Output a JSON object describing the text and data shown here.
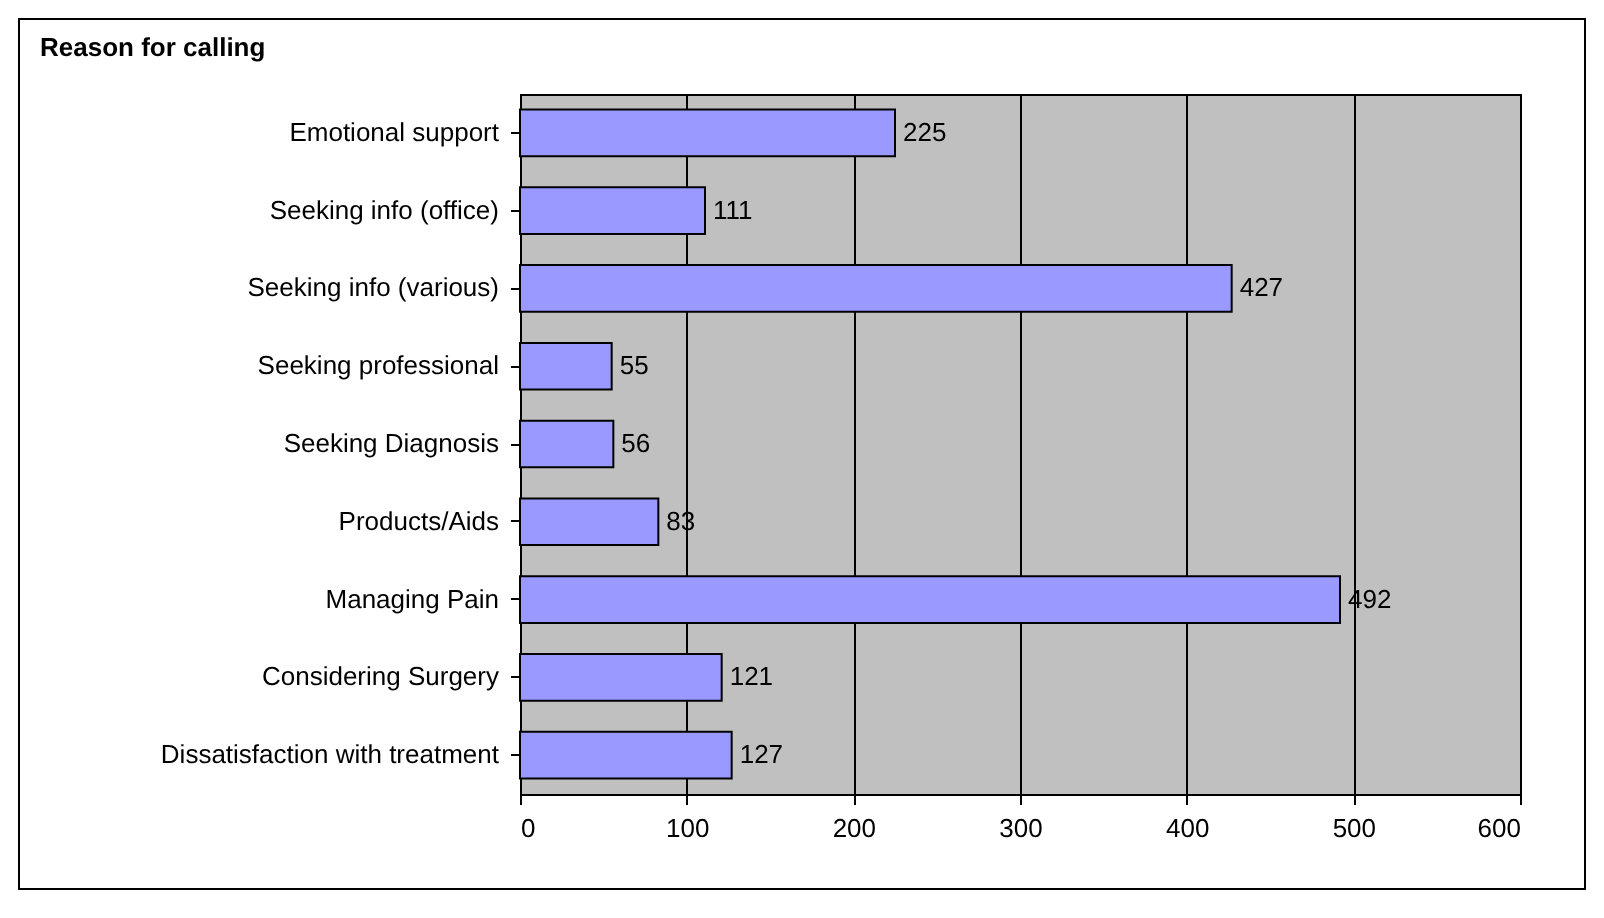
{
  "chart_data": {
    "type": "bar",
    "orientation": "horizontal",
    "title": "Reason for calling",
    "categories": [
      "Emotional support",
      "Seeking info (office)",
      "Seeking info (various)",
      "Seeking professional",
      "Seeking Diagnosis",
      "Products/Aids",
      "Managing Pain",
      "Considering Surgery",
      "Dissatisfaction with treatment"
    ],
    "values": [
      225,
      111,
      427,
      55,
      56,
      83,
      492,
      121,
      127
    ],
    "color": "#9999ff",
    "xlim": [
      0,
      600
    ],
    "xticks": [
      0,
      100,
      200,
      300,
      400,
      500,
      600
    ],
    "grid": "x",
    "data_labels": true
  }
}
